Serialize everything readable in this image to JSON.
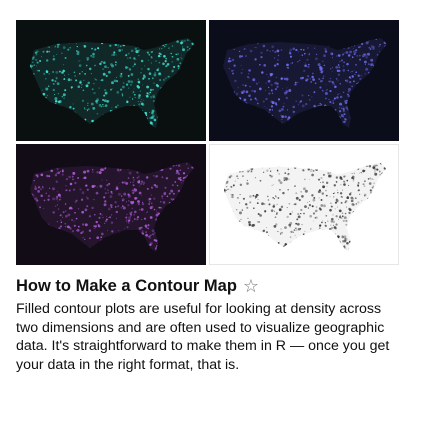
{
  "article": {
    "title": "How to Make a Contour Map",
    "star_icon": "star-outline-icon",
    "description": "Filled contour plots are useful for looking at density across two dimensions and are often used to visualize geographic data. It's straightforward to make them in R — once you get your data in the right format, that is."
  },
  "thumbnails": [
    {
      "name": "teal-density-map",
      "background": "#0a0f10",
      "color": "#3ee0d0"
    },
    {
      "name": "blue-density-map",
      "background": "#0c0d1a",
      "color": "#6f6cf0"
    },
    {
      "name": "purple-density-map",
      "background": "#120c16",
      "color": "#b05ad8"
    },
    {
      "name": "grayscale-density-map",
      "background": "#ffffff",
      "color": "#3a3a3a"
    }
  ]
}
